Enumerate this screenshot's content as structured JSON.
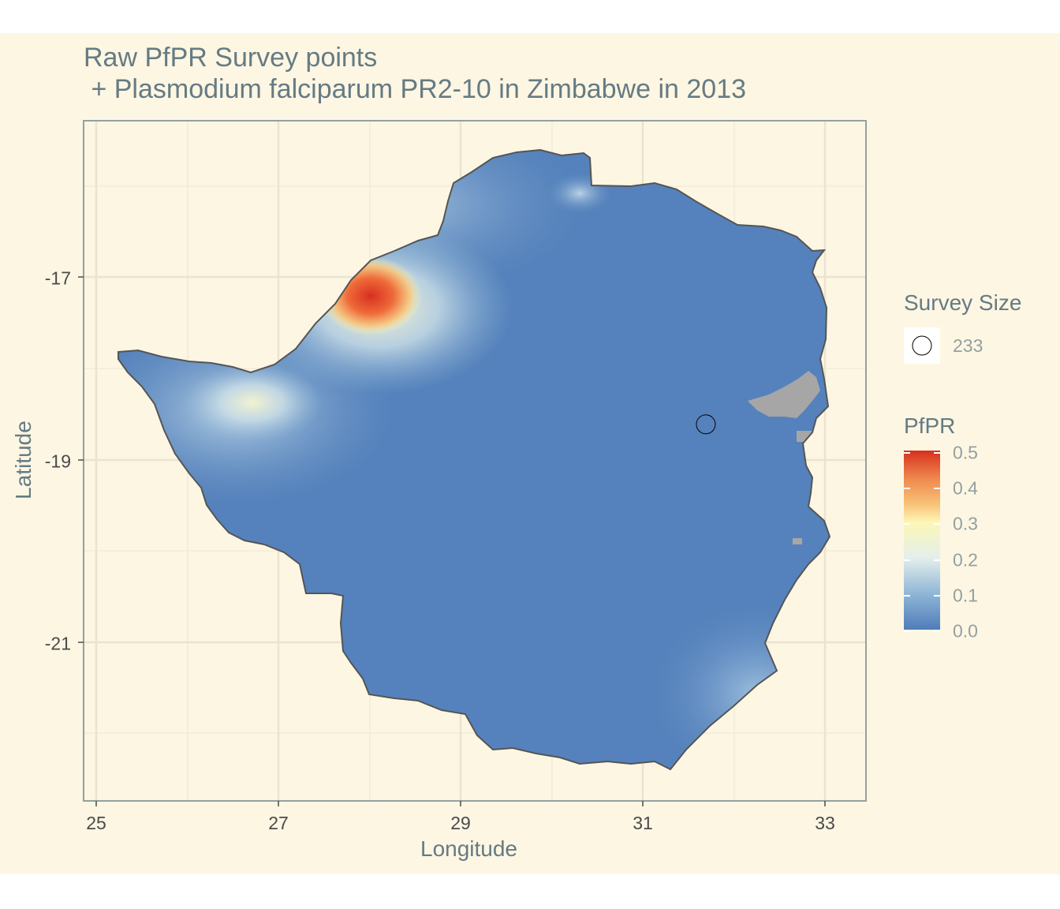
{
  "map": {
    "title_line1": "Raw PfPR Survey points",
    "title_line2": " + Plasmodium falciparum PR2-10 in Zimbabwe in 2013",
    "xlabel": "Longitude",
    "ylabel": "Latitude",
    "x_ticks": [
      "25",
      "27",
      "29",
      "31",
      "33"
    ],
    "y_ticks": [
      "-17",
      "-19",
      "-21"
    ],
    "x_range": [
      24.9,
      33.45
    ],
    "y_range": [
      -22.75,
      -15.85
    ],
    "region": "Zimbabwe",
    "raster_variable": "PfPR",
    "missing_data_color": "#a6a6a6",
    "background_color": "#fdf6e3",
    "high_prevalence_hotspot": "northwest, near Lake Kariba",
    "survey_points": [
      {
        "longitude": 31.7,
        "latitude": -18.93,
        "survey_size": 233
      }
    ]
  },
  "legend": {
    "size_title": "Survey Size",
    "size_label": "233",
    "color_title": "PfPR",
    "color_ticks": [
      "0.5",
      "0.4",
      "0.3",
      "0.2",
      "0.1",
      "0.0"
    ],
    "color_range": [
      0.0,
      0.5
    ],
    "palette": [
      "#4f7cb9",
      "#8fb6d6",
      "#e3efec",
      "#fcf7b6",
      "#f8c277",
      "#ef8a4f",
      "#d7301f"
    ]
  }
}
